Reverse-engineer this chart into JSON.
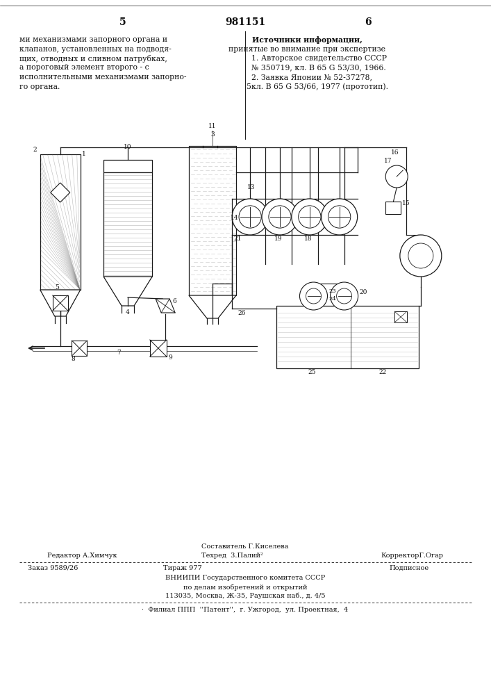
{
  "page_number_left": "5",
  "patent_number": "981151",
  "page_number_right": "6",
  "text_left_lines": [
    "ми механизмами запорного органа и",
    "клапанов, установленных на подводя-",
    "щих, отводных и сливном патрубках,",
    "а пороговый элемент второго - с",
    "исполнительными механизмами запорно-",
    "го органа."
  ],
  "text_right_lines": [
    "Источники информации,",
    "принятые во внимание при экспертизе",
    "1. Авторское свидетельство СССР",
    "№ 350719, кл. В 65 G 53/30, 1966.",
    "2. Заявка Японии № 52-37278,",
    "кл. В 65 G 53/66, 1977 (прототип)."
  ],
  "text_right_line5_prefix": "5",
  "footer_editor": "Редактор А.Химчук",
  "footer_comp_top": "Составитель Г.Киселева",
  "footer_tech": "Техред  3.Палий²",
  "footer_corrector": "КорректорГ.Огар",
  "footer_order": "Заказ 9589/26",
  "footer_tirazh": "Тираж 977",
  "footer_podp": "Подписное",
  "footer_org1": "ВНИИПИ Государственного комитета СССР",
  "footer_org2": "по делам изобретений и открытий",
  "footer_org3": "113035, Москва, Ж-35, Раушская наб., д. 4/5",
  "footer_filial": "·  Филиал ППП  ''Патент'',  г. Ужгород,  ул. Проектная,  4",
  "bg_color": "#ffffff",
  "text_color": "#111111"
}
